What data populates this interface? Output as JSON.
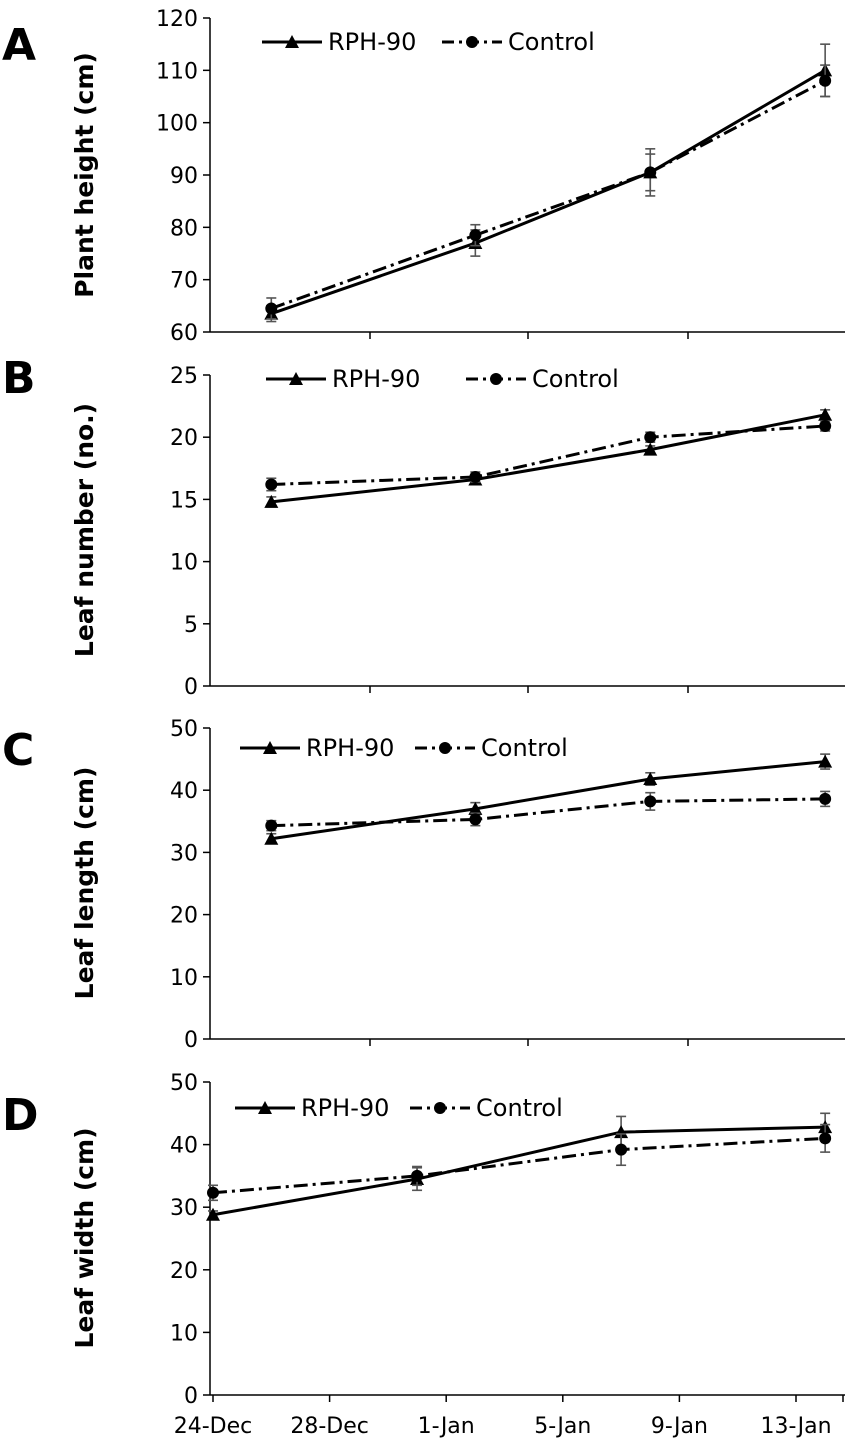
{
  "chart_data": [
    {
      "panel": "A",
      "type": "line",
      "ylabel": "Plant height (cm)",
      "ylim": [
        60,
        120
      ],
      "yticks": [
        60,
        70,
        80,
        90,
        100,
        110,
        120
      ],
      "legend_position": "top-left",
      "series": [
        {
          "name": "RPH-90",
          "marker": "triangle",
          "line": "solid",
          "x": [
            "26-Dec",
            "2-Jan",
            "8-Jan",
            "14-Jan"
          ],
          "values": [
            63.5,
            77.0,
            90.5,
            110.0
          ],
          "errors": [
            1.5,
            2.5,
            4.5,
            5.0
          ]
        },
        {
          "name": "Control",
          "marker": "circle",
          "line": "dashdot",
          "x": [
            "26-Dec",
            "2-Jan",
            "8-Jan",
            "14-Jan"
          ],
          "values": [
            64.5,
            78.5,
            90.5,
            108.0
          ],
          "errors": [
            2.0,
            2.0,
            3.5,
            3.0
          ]
        }
      ]
    },
    {
      "panel": "B",
      "type": "line",
      "ylabel": "Leaf number (no.)",
      "ylim": [
        0,
        25
      ],
      "yticks": [
        0,
        5,
        10,
        15,
        20,
        25
      ],
      "legend_position": "top-left",
      "series": [
        {
          "name": "RPH-90",
          "marker": "triangle",
          "line": "solid",
          "x": [
            "26-Dec",
            "2-Jan",
            "8-Jan",
            "14-Jan"
          ],
          "values": [
            14.8,
            16.6,
            19.0,
            21.8
          ],
          "errors": [
            0.4,
            0.3,
            0.3,
            0.4
          ]
        },
        {
          "name": "Control",
          "marker": "circle",
          "line": "dashdot",
          "x": [
            "26-Dec",
            "2-Jan",
            "8-Jan",
            "14-Jan"
          ],
          "values": [
            16.2,
            16.8,
            20.0,
            20.9
          ],
          "errors": [
            0.5,
            0.4,
            0.4,
            0.4
          ]
        }
      ]
    },
    {
      "panel": "C",
      "type": "line",
      "ylabel": "Leaf length (cm)",
      "ylim": [
        0,
        50
      ],
      "yticks": [
        0,
        10,
        20,
        30,
        40,
        50
      ],
      "legend_position": "top-left",
      "series": [
        {
          "name": "RPH-90",
          "marker": "triangle",
          "line": "solid",
          "x": [
            "26-Dec",
            "2-Jan",
            "8-Jan",
            "14-Jan"
          ],
          "values": [
            32.2,
            37.0,
            41.8,
            44.6
          ],
          "errors": [
            0.8,
            1.0,
            1.0,
            1.2
          ]
        },
        {
          "name": "Control",
          "marker": "circle",
          "line": "dashdot",
          "x": [
            "26-Dec",
            "2-Jan",
            "8-Jan",
            "14-Jan"
          ],
          "values": [
            34.3,
            35.3,
            38.2,
            38.6
          ],
          "errors": [
            0.8,
            1.0,
            1.4,
            1.2
          ]
        }
      ]
    },
    {
      "panel": "D",
      "type": "line",
      "ylabel": "Leaf width (cm)",
      "ylim": [
        0,
        50
      ],
      "yticks": [
        0,
        10,
        20,
        30,
        40,
        50
      ],
      "legend_position": "top-left",
      "x_ticks": [
        "24-Dec",
        "28-Dec",
        "1-Jan",
        "5-Jan",
        "9-Jan",
        "13-Jan"
      ],
      "series": [
        {
          "name": "RPH-90",
          "marker": "triangle",
          "line": "solid",
          "x": [
            "24-Dec",
            "31-Dec",
            "7-Jan",
            "14-Jan"
          ],
          "values": [
            28.8,
            34.5,
            42.0,
            42.8
          ],
          "errors": [
            0.6,
            1.8,
            2.5,
            2.2
          ]
        },
        {
          "name": "Control",
          "marker": "circle",
          "line": "dashdot",
          "x": [
            "24-Dec",
            "31-Dec",
            "7-Jan",
            "14-Jan"
          ],
          "values": [
            32.3,
            35.0,
            39.2,
            41.0
          ],
          "errors": [
            1.2,
            1.5,
            2.5,
            2.2
          ]
        }
      ]
    }
  ]
}
